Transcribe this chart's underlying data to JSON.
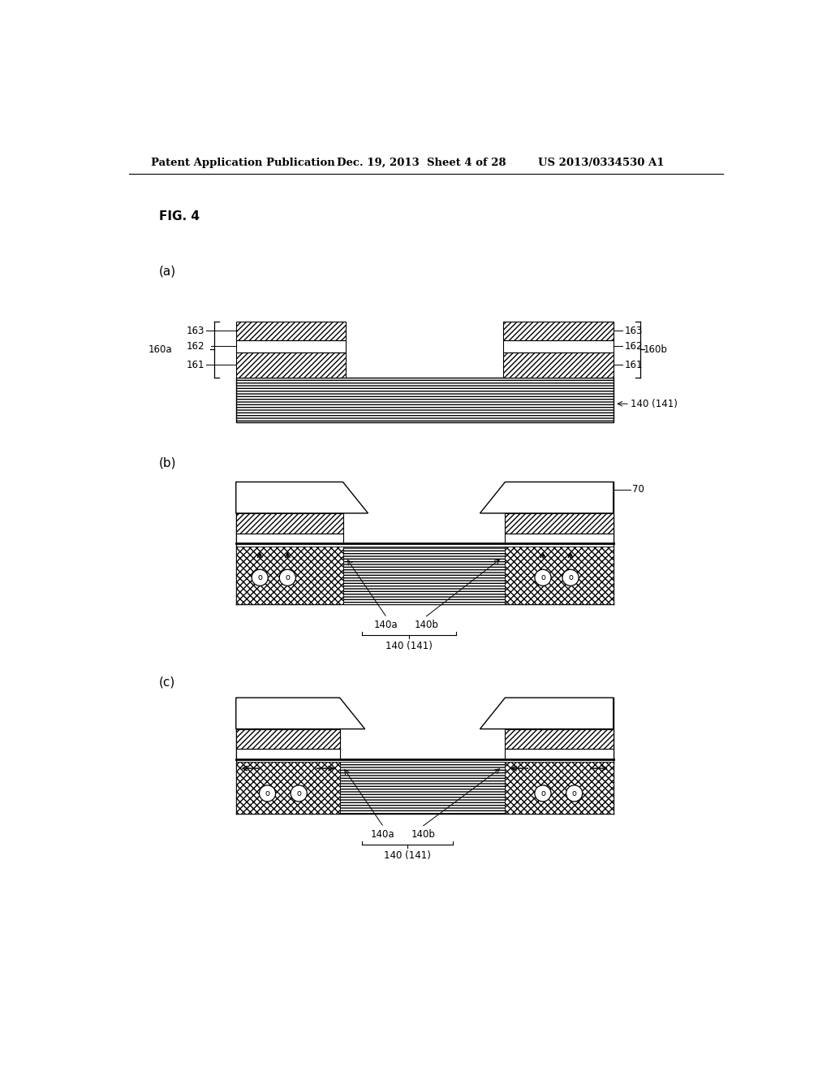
{
  "header_left": "Patent Application Publication",
  "header_mid": "Dec. 19, 2013  Sheet 4 of 28",
  "header_right": "US 2013/0334530 A1",
  "fig_label": "FIG. 4",
  "sub_a": "(a)",
  "sub_b": "(b)",
  "sub_c": "(c)"
}
